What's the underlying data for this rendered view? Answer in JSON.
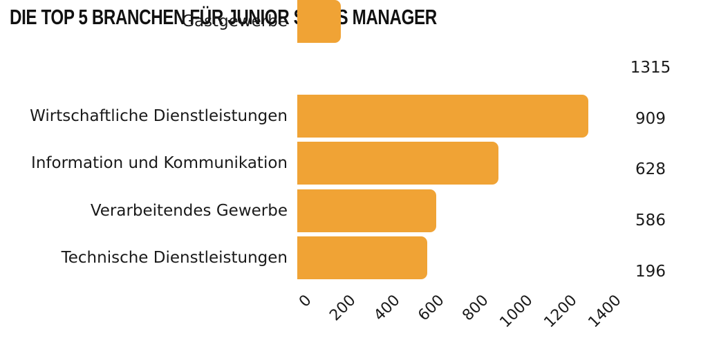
{
  "chart_data": {
    "type": "bar",
    "orientation": "horizontal",
    "title": "DIE TOP 5 BRANCHEN FÜR JUNIOR SALES MANAGER",
    "categories": [
      "Wirtschaftliche Dienstleistungen",
      "Information und Kommunikation",
      "Verarbeitendes Gewerbe",
      "Technische Dienstleistungen",
      "Gastgewerbe"
    ],
    "values": [
      1315,
      909,
      628,
      586,
      196
    ],
    "value_labels": [
      "1315",
      "909",
      "628",
      "586",
      "196"
    ],
    "xlabel": "",
    "ylabel": "",
    "xlim": [
      0,
      1400
    ],
    "xticks": [
      0,
      200,
      400,
      600,
      800,
      1000,
      1200,
      1400
    ],
    "xtick_labels": [
      "0",
      "200",
      "400",
      "600",
      "800",
      "1000",
      "1200",
      "1400"
    ],
    "grid": false,
    "legend": false,
    "value_labels_position": "right",
    "bar_color": "#F0A335",
    "text_color": "#1A1A1A",
    "title_color": "#111111",
    "background_color": "#FFFFFF"
  }
}
